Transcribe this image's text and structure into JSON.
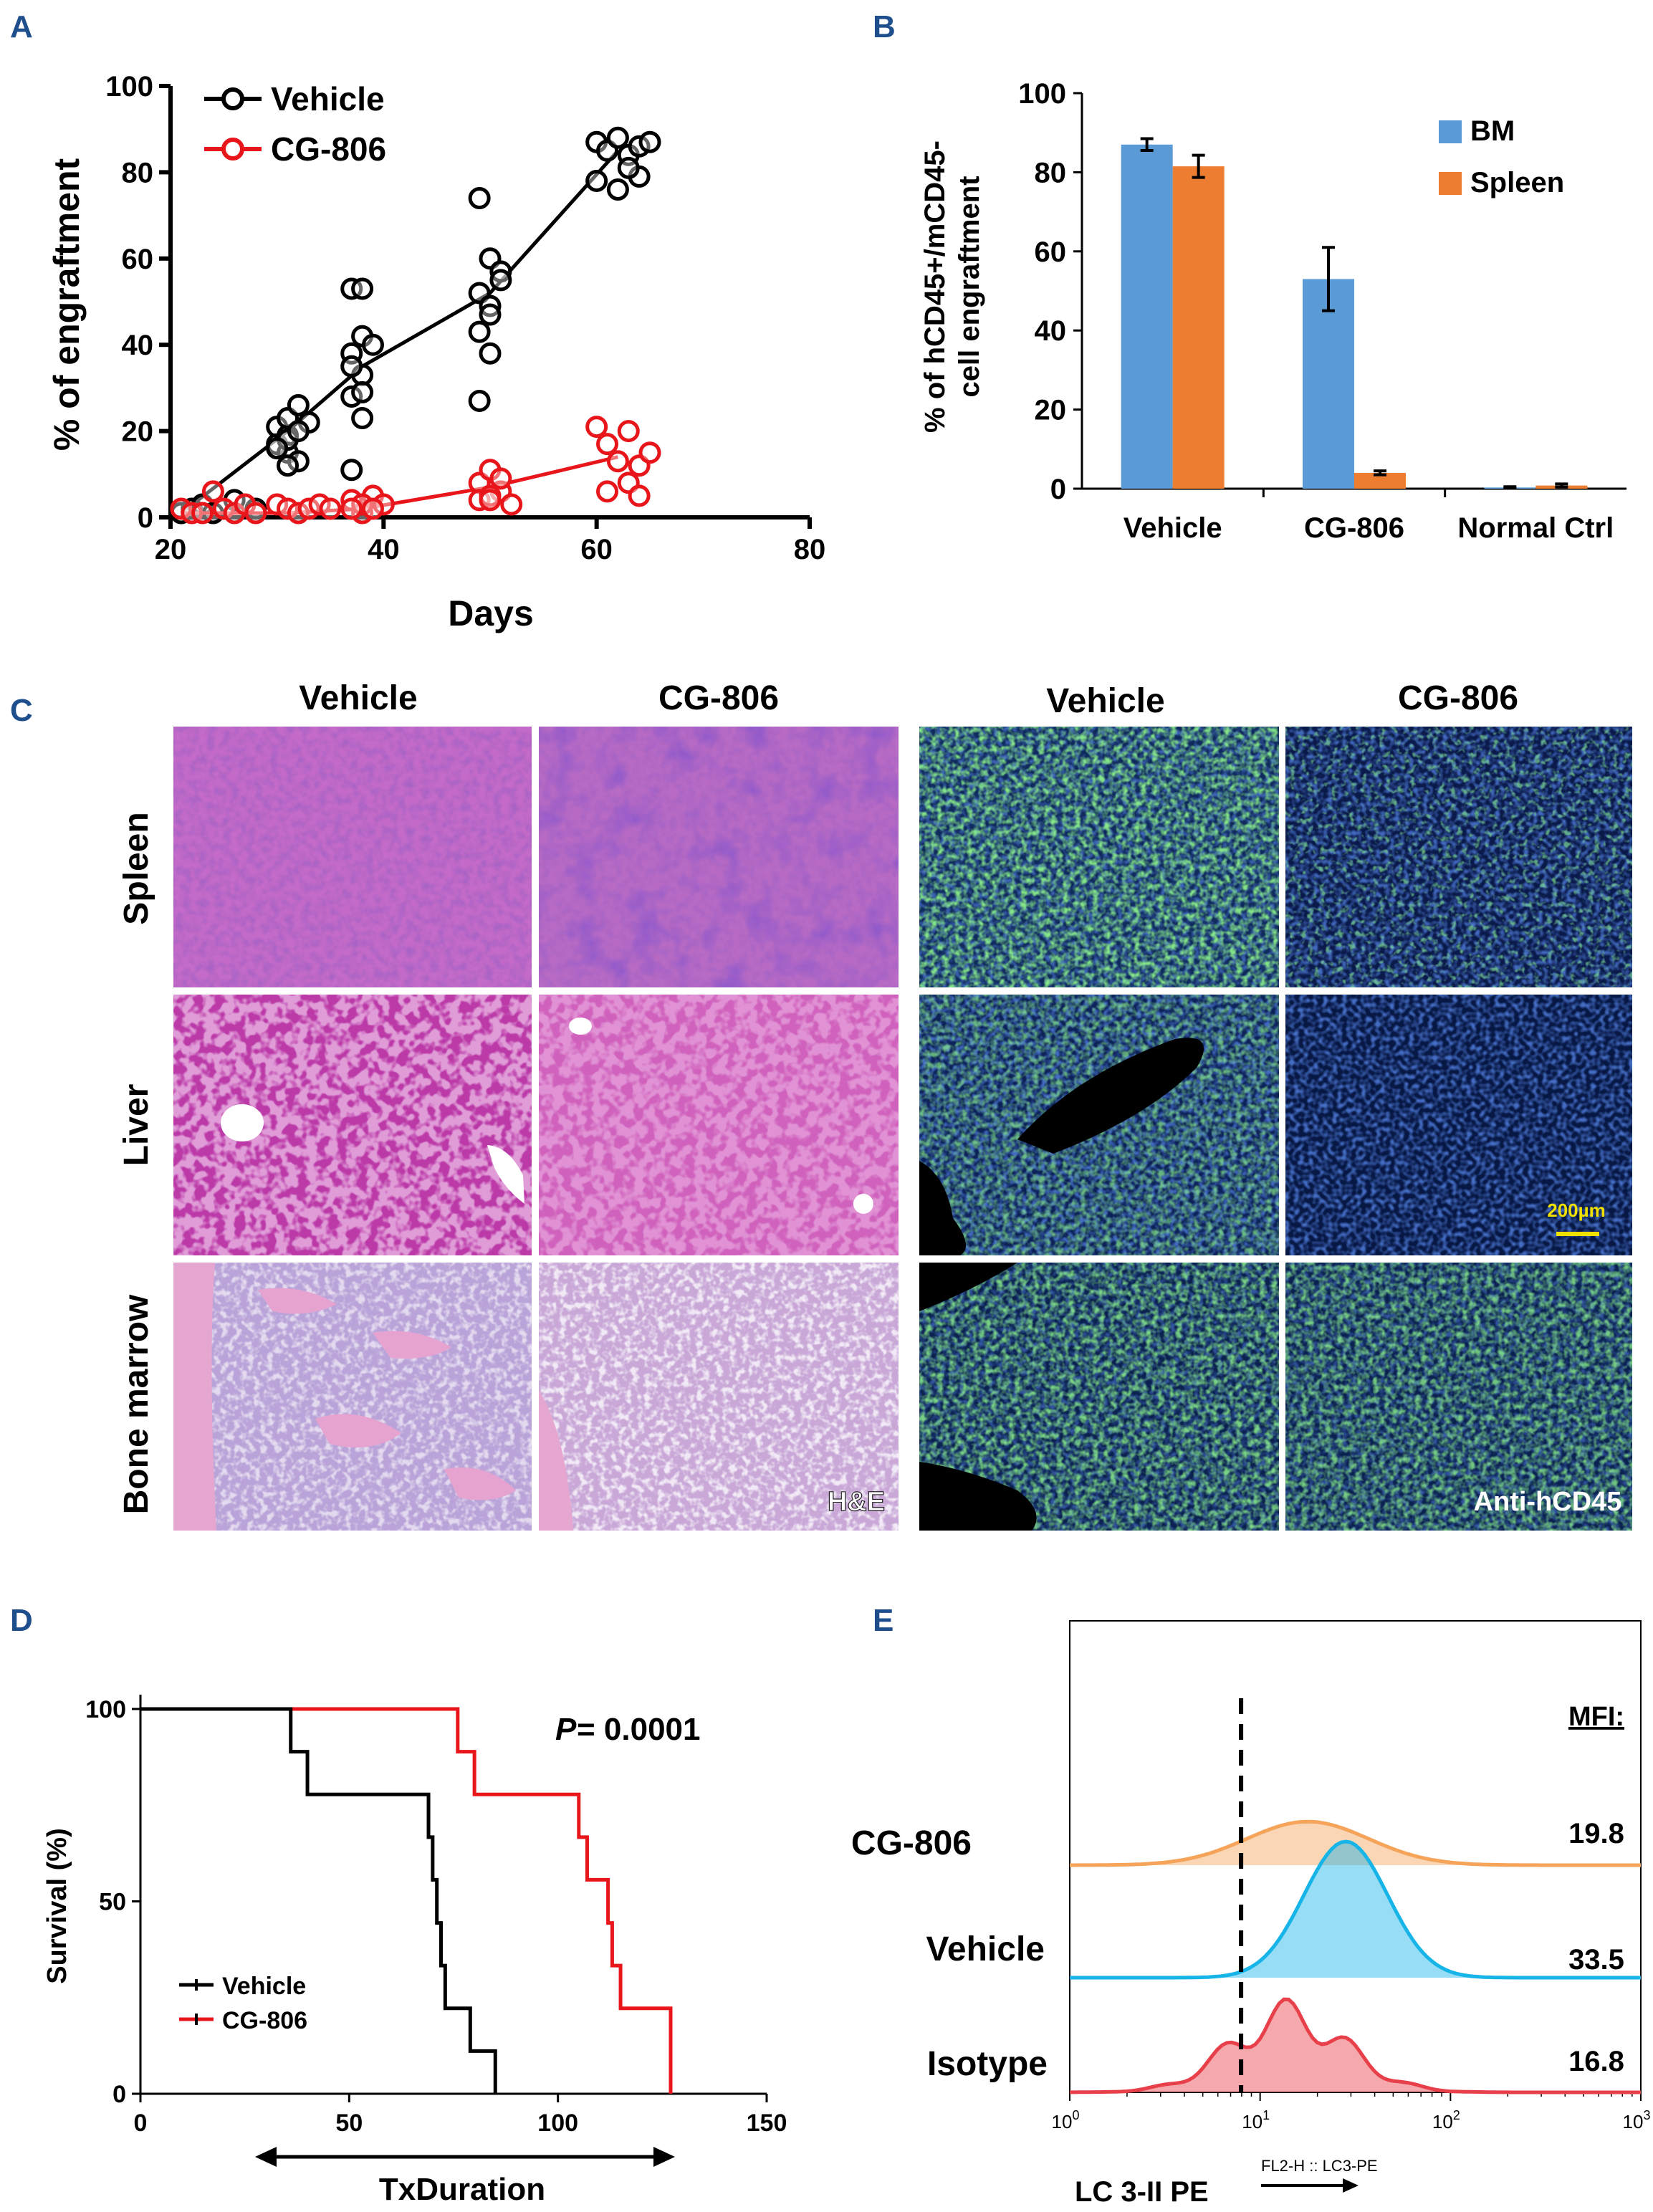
{
  "panel_labels": {
    "a": "A",
    "b": "B",
    "c": "C",
    "d": "D",
    "e": "E"
  },
  "colors": {
    "vehicle": "#000000",
    "cg806": "#e8161b",
    "bm": "#5b9bd5",
    "spleen": "#ed7d31",
    "he_base": "#c055b8",
    "if_base": "#0a1850",
    "if_green": "#39d23c",
    "hist_orange": "#f5a45a",
    "hist_blue": "#17b4e8",
    "hist_red": "#e8404a"
  },
  "chart_data": [
    {
      "id": "A",
      "type": "scatter",
      "xlabel": "Days",
      "ylabel": "% of engraftment",
      "xlim": [
        20,
        80
      ],
      "ylim": [
        0,
        100
      ],
      "xticks": [
        20,
        40,
        60,
        80
      ],
      "yticks": [
        0,
        20,
        40,
        60,
        80,
        100
      ],
      "legend": [
        "Vehicle",
        "CG-806"
      ],
      "series": [
        {
          "name": "Vehicle",
          "trend": [
            [
              21,
              1
            ],
            [
              31,
              20
            ],
            [
              38,
              35
            ],
            [
              50,
              52
            ],
            [
              62,
              85
            ]
          ],
          "points": [
            [
              21,
              1
            ],
            [
              22,
              2
            ],
            [
              23,
              3
            ],
            [
              24,
              1
            ],
            [
              26,
              4
            ],
            [
              28,
              2
            ],
            [
              30,
              17
            ],
            [
              30,
              21
            ],
            [
              31,
              19
            ],
            [
              31,
              23
            ],
            [
              32,
              26
            ],
            [
              31,
              15
            ],
            [
              32,
              13
            ],
            [
              31,
              18
            ],
            [
              33,
              22
            ],
            [
              30,
              16
            ],
            [
              32,
              20
            ],
            [
              31,
              12
            ],
            [
              37,
              53
            ],
            [
              38,
              53
            ],
            [
              38,
              42
            ],
            [
              37,
              38
            ],
            [
              38,
              33
            ],
            [
              37,
              28
            ],
            [
              38,
              23
            ],
            [
              37,
              11
            ],
            [
              38,
              29
            ],
            [
              39,
              40
            ],
            [
              37,
              35
            ],
            [
              49,
              74
            ],
            [
              50,
              60
            ],
            [
              51,
              57
            ],
            [
              49,
              52
            ],
            [
              50,
              49
            ],
            [
              49,
              43
            ],
            [
              50,
              38
            ],
            [
              49,
              27
            ],
            [
              51,
              55
            ],
            [
              50,
              47
            ],
            [
              60,
              87
            ],
            [
              61,
              85
            ],
            [
              62,
              88
            ],
            [
              63,
              84
            ],
            [
              64,
              86
            ],
            [
              65,
              87
            ],
            [
              60,
              78
            ],
            [
              62,
              76
            ],
            [
              64,
              79
            ],
            [
              63,
              81
            ]
          ]
        },
        {
          "name": "CG-806",
          "trend": [
            [
              21,
              1
            ],
            [
              31,
              1
            ],
            [
              38,
              2
            ],
            [
              50,
              7
            ],
            [
              62,
              14
            ]
          ],
          "points": [
            [
              21,
              2
            ],
            [
              22,
              1
            ],
            [
              23,
              1
            ],
            [
              24,
              6
            ],
            [
              25,
              2
            ],
            [
              26,
              1
            ],
            [
              27,
              3
            ],
            [
              28,
              1
            ],
            [
              30,
              3
            ],
            [
              31,
              2
            ],
            [
              32,
              1
            ],
            [
              33,
              2
            ],
            [
              34,
              3
            ],
            [
              35,
              2
            ],
            [
              37,
              4
            ],
            [
              38,
              1
            ],
            [
              39,
              5
            ],
            [
              40,
              3
            ],
            [
              38,
              3
            ],
            [
              37,
              2
            ],
            [
              39,
              2
            ],
            [
              49,
              8
            ],
            [
              50,
              11
            ],
            [
              51,
              6
            ],
            [
              49,
              4
            ],
            [
              50,
              5
            ],
            [
              52,
              3
            ],
            [
              51,
              9
            ],
            [
              50,
              4
            ],
            [
              60,
              21
            ],
            [
              61,
              17
            ],
            [
              63,
              20
            ],
            [
              64,
              12
            ],
            [
              61,
              6
            ],
            [
              63,
              8
            ],
            [
              65,
              15
            ],
            [
              62,
              13
            ],
            [
              64,
              5
            ]
          ]
        }
      ]
    },
    {
      "id": "B",
      "type": "bar",
      "ylabel_lines": [
        "% of hCD45+/mCD45-",
        "cell engraftment"
      ],
      "categories": [
        "Vehicle",
        "CG-806",
        "Normal Ctrl"
      ],
      "ylim": [
        0,
        100
      ],
      "yticks": [
        0,
        20,
        40,
        60,
        80,
        100
      ],
      "series": [
        {
          "name": "BM",
          "values": [
            87,
            53,
            0.3
          ],
          "errors": [
            1.5,
            8,
            0.2
          ]
        },
        {
          "name": "Spleen",
          "values": [
            81.5,
            4,
            0.8
          ],
          "errors": [
            2.8,
            0.5,
            0.4
          ]
        }
      ]
    },
    {
      "id": "D",
      "type": "line",
      "xlabel": "TxDuration",
      "ylabel": "Survival (%)",
      "xlim": [
        0,
        150
      ],
      "ylim": [
        0,
        100
      ],
      "xticks": [
        0,
        50,
        100,
        150
      ],
      "yticks": [
        0,
        50,
        100
      ],
      "annotation": {
        "p_label": "P",
        "p_value": " = 0.0001"
      },
      "series": [
        {
          "name": "Vehicle",
          "steps": [
            [
              0,
              100
            ],
            [
              36,
              100
            ],
            [
              36,
              88.9
            ],
            [
              40,
              88.9
            ],
            [
              40,
              77.8
            ],
            [
              69,
              77.8
            ],
            [
              69,
              66.7
            ],
            [
              70,
              66.7
            ],
            [
              70,
              55.6
            ],
            [
              71,
              55.6
            ],
            [
              71,
              44.4
            ],
            [
              72,
              44.4
            ],
            [
              72,
              33.3
            ],
            [
              73,
              33.3
            ],
            [
              73,
              22.2
            ],
            [
              79,
              22.2
            ],
            [
              79,
              11.1
            ],
            [
              85,
              11.1
            ],
            [
              85,
              0
            ]
          ]
        },
        {
          "name": "CG-806",
          "steps": [
            [
              0,
              100
            ],
            [
              76,
              100
            ],
            [
              76,
              88.9
            ],
            [
              80,
              88.9
            ],
            [
              80,
              77.8
            ],
            [
              105,
              77.8
            ],
            [
              105,
              66.7
            ],
            [
              107,
              66.7
            ],
            [
              107,
              55.6
            ],
            [
              112,
              55.6
            ],
            [
              112,
              44.4
            ],
            [
              113,
              44.4
            ],
            [
              113,
              33.3
            ],
            [
              115,
              33.3
            ],
            [
              115,
              22.2
            ],
            [
              127,
              22.2
            ],
            [
              127,
              0
            ]
          ]
        }
      ]
    },
    {
      "id": "E",
      "type": "area",
      "xlabel": "LC 3-II PE",
      "xsublabel": "FL2-H :: LC3-PE",
      "xticks_exp": [
        0,
        1,
        2,
        3
      ],
      "tick_base": "10",
      "mfi_title": "MFI:",
      "gate": 0.9,
      "series": [
        {
          "name": "CG-806",
          "mfi": "19.8",
          "peak_logx": 1.25,
          "spread": 0.32,
          "height": 0.32
        },
        {
          "name": "Vehicle",
          "mfi": "33.5",
          "peak_logx": 1.45,
          "spread": 0.22,
          "height": 1.0
        },
        {
          "name": "Isotype",
          "mfi": "16.8",
          "peak_logx": 1.15,
          "spread": 0.3,
          "height": 0.55
        }
      ]
    }
  ],
  "panel_c": {
    "he_cols": [
      "Vehicle",
      "CG-806"
    ],
    "if_cols": [
      "Vehicle",
      "CG-806"
    ],
    "rows": [
      "Spleen",
      "Liver",
      "Bone marrow"
    ],
    "he_tag": "H&E",
    "if_tag": "Anti-hCD45",
    "scale": "200µm"
  }
}
